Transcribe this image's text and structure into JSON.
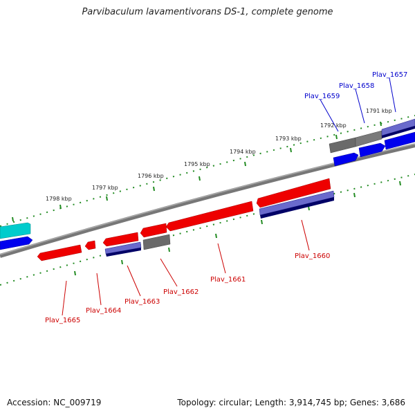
{
  "title": "Parvibaculum lavamentivorans DS-1, complete genome",
  "footer": {
    "accession": "Accession: NC_009719",
    "summary": "Topology: circular; Length: 3,914,745 bp; Genes: 3,686"
  },
  "colors": {
    "forward_gene": "#0000ee",
    "reverse_gene": "#ee0000",
    "other_feature": "#666666",
    "rna": "#00bbcc",
    "backbone": "#888888",
    "tick": "#228b22"
  },
  "scale": {
    "unit": "kbp",
    "labels": [
      "1791 kbp",
      "1792 kbp",
      "1793 kbp",
      "1794 kbp",
      "1795 kbp",
      "1796 kbp",
      "1797 kbp",
      "1798 kbp"
    ]
  },
  "gene_labels": {
    "forward": [
      "Plav_1657",
      "Plav_1658",
      "Plav_1659"
    ],
    "reverse": [
      "Plav_1660",
      "Plav_1661",
      "Plav_1662",
      "Plav_1663",
      "Plav_1664",
      "Plav_1665"
    ]
  }
}
